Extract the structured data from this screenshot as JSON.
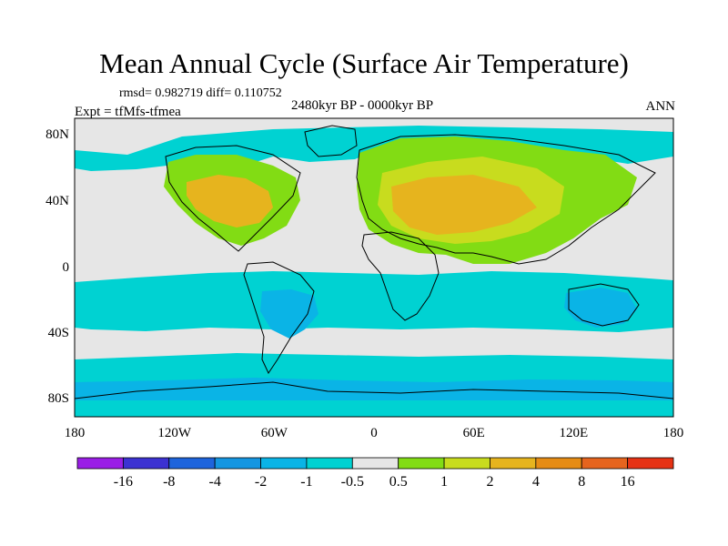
{
  "title": "Mean Annual Cycle (Surface Air Temperature)",
  "stats": "rmsd= 0.982719 diff= 0.110752",
  "period": "2480kyr BP - 0000kyr BP",
  "expt": "Expt = tfMfs-tfmea",
  "season": "ANN",
  "lat_labels": [
    "80N",
    "40N",
    "0",
    "40S",
    "80S"
  ],
  "lon_labels": [
    "180",
    "120W",
    "60W",
    "0",
    "60E",
    "120E",
    "180"
  ],
  "colorbar": {
    "labels": [
      "-16",
      "-8",
      "-4",
      "-2",
      "-1",
      "-0.5",
      "0.5",
      "1",
      "2",
      "4",
      "8",
      "16"
    ],
    "colors": [
      "#9a1ee6",
      "#3c32d2",
      "#1e64dc",
      "#1496e1",
      "#0ab4e6",
      "#00d2d2",
      "#e6e6e6",
      "#82dc14",
      "#c8dc1e",
      "#e6b41e",
      "#e68c14",
      "#e6641e",
      "#e63214"
    ]
  },
  "palette": {
    "neutral": "#e6e6e6",
    "cool1": "#00d2d2",
    "cool2": "#0ab4e6",
    "warm1": "#82dc14",
    "warm2": "#c8dc1e",
    "warm3": "#e6b41e"
  }
}
